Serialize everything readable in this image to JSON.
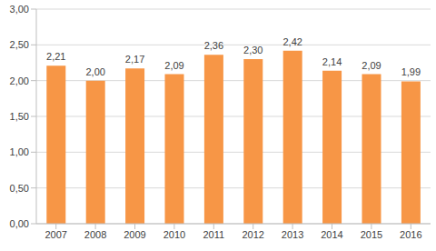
{
  "chart_data": {
    "type": "bar",
    "categories": [
      "2007",
      "2008",
      "2009",
      "2010",
      "2011",
      "2012",
      "2013",
      "2014",
      "2015",
      "2016"
    ],
    "values": [
      2.21,
      2.0,
      2.17,
      2.09,
      2.36,
      2.3,
      2.42,
      2.14,
      2.09,
      1.99
    ],
    "value_labels": [
      "2,21",
      "2,00",
      "2,17",
      "2,09",
      "2,36",
      "2,30",
      "2,42",
      "2,14",
      "2,09",
      "1,99"
    ],
    "color": "#f79646",
    "ylim": [
      0,
      3
    ],
    "yticks": [
      {
        "value": 0,
        "label": "0,00"
      },
      {
        "value": 0.5,
        "label": "0,50"
      },
      {
        "value": 1,
        "label": "1,00"
      },
      {
        "value": 1.5,
        "label": "1,50"
      },
      {
        "value": 2,
        "label": "2,00"
      },
      {
        "value": 2.5,
        "label": "2,50"
      },
      {
        "value": 3,
        "label": "3,00"
      }
    ],
    "grid": true,
    "data_labels": true
  }
}
